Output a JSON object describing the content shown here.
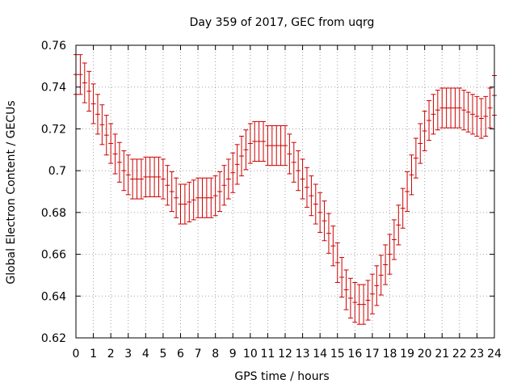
{
  "chart_data": {
    "type": "line",
    "title": "Day 359 of 2017, GEC from uqrg",
    "xlabel": "GPS time / hours",
    "ylabel": "Global Electron Content / GECUs",
    "xlim": [
      0,
      24
    ],
    "ylim": [
      0.62,
      0.76
    ],
    "grid": true,
    "xticks": [
      0,
      1,
      2,
      3,
      4,
      5,
      6,
      7,
      8,
      9,
      10,
      11,
      12,
      13,
      14,
      15,
      16,
      17,
      18,
      19,
      20,
      21,
      22,
      23,
      24
    ],
    "xtick_labels": [
      "0",
      "1",
      "2",
      "3",
      "4",
      "5",
      "6",
      "7",
      "8",
      "9",
      "10",
      "11",
      "12",
      "13",
      "14",
      "15",
      "16",
      "17",
      "18",
      "19",
      "20",
      "21",
      "22",
      "23",
      "24"
    ],
    "yticks": [
      0.62,
      0.64,
      0.66,
      0.68,
      0.7,
      0.72,
      0.74,
      0.76
    ],
    "ytick_labels": [
      "0.62",
      "0.64",
      "0.66",
      "0.68",
      "0.7",
      "0.72",
      "0.74",
      "0.76"
    ],
    "error_bar": 0.0095,
    "series": [
      {
        "color": "#cc0000",
        "x": [
          0,
          0.25,
          0.5,
          0.75,
          1,
          1.25,
          1.5,
          1.75,
          2,
          2.25,
          2.5,
          2.75,
          3,
          3.25,
          3.5,
          3.75,
          4,
          4.25,
          4.5,
          4.75,
          5,
          5.25,
          5.5,
          5.75,
          6,
          6.25,
          6.5,
          6.75,
          7,
          7.25,
          7.5,
          7.75,
          8,
          8.25,
          8.5,
          8.75,
          9,
          9.25,
          9.5,
          9.75,
          10,
          10.25,
          10.5,
          10.75,
          11,
          11.25,
          11.5,
          11.75,
          12,
          12.25,
          12.5,
          12.75,
          13,
          13.25,
          13.5,
          13.75,
          14,
          14.25,
          14.5,
          14.75,
          15,
          15.25,
          15.5,
          15.75,
          16,
          16.25,
          16.5,
          16.75,
          17,
          17.25,
          17.5,
          17.75,
          18,
          18.25,
          18.5,
          18.75,
          19,
          19.25,
          19.5,
          19.75,
          20,
          20.25,
          20.5,
          20.75,
          21,
          21.25,
          21.5,
          21.75,
          22,
          22.25,
          22.5,
          22.75,
          23,
          23.25,
          23.5,
          23.75,
          24
        ],
        "y": [
          0.746,
          0.746,
          0.742,
          0.738,
          0.732,
          0.727,
          0.722,
          0.717,
          0.713,
          0.708,
          0.704,
          0.7,
          0.698,
          0.696,
          0.696,
          0.696,
          0.697,
          0.697,
          0.697,
          0.697,
          0.696,
          0.693,
          0.69,
          0.687,
          0.684,
          0.684,
          0.685,
          0.686,
          0.687,
          0.687,
          0.687,
          0.687,
          0.688,
          0.69,
          0.693,
          0.696,
          0.699,
          0.703,
          0.707,
          0.71,
          0.713,
          0.714,
          0.714,
          0.714,
          0.712,
          0.712,
          0.712,
          0.712,
          0.712,
          0.708,
          0.704,
          0.7,
          0.696,
          0.692,
          0.688,
          0.684,
          0.68,
          0.676,
          0.67,
          0.664,
          0.656,
          0.649,
          0.643,
          0.639,
          0.637,
          0.636,
          0.636,
          0.638,
          0.641,
          0.645,
          0.65,
          0.655,
          0.66,
          0.667,
          0.674,
          0.682,
          0.69,
          0.698,
          0.706,
          0.713,
          0.719,
          0.724,
          0.727,
          0.729,
          0.73,
          0.73,
          0.73,
          0.73,
          0.73,
          0.729,
          0.728,
          0.727,
          0.726,
          0.725,
          0.726,
          0.73,
          0.736
        ]
      }
    ]
  }
}
